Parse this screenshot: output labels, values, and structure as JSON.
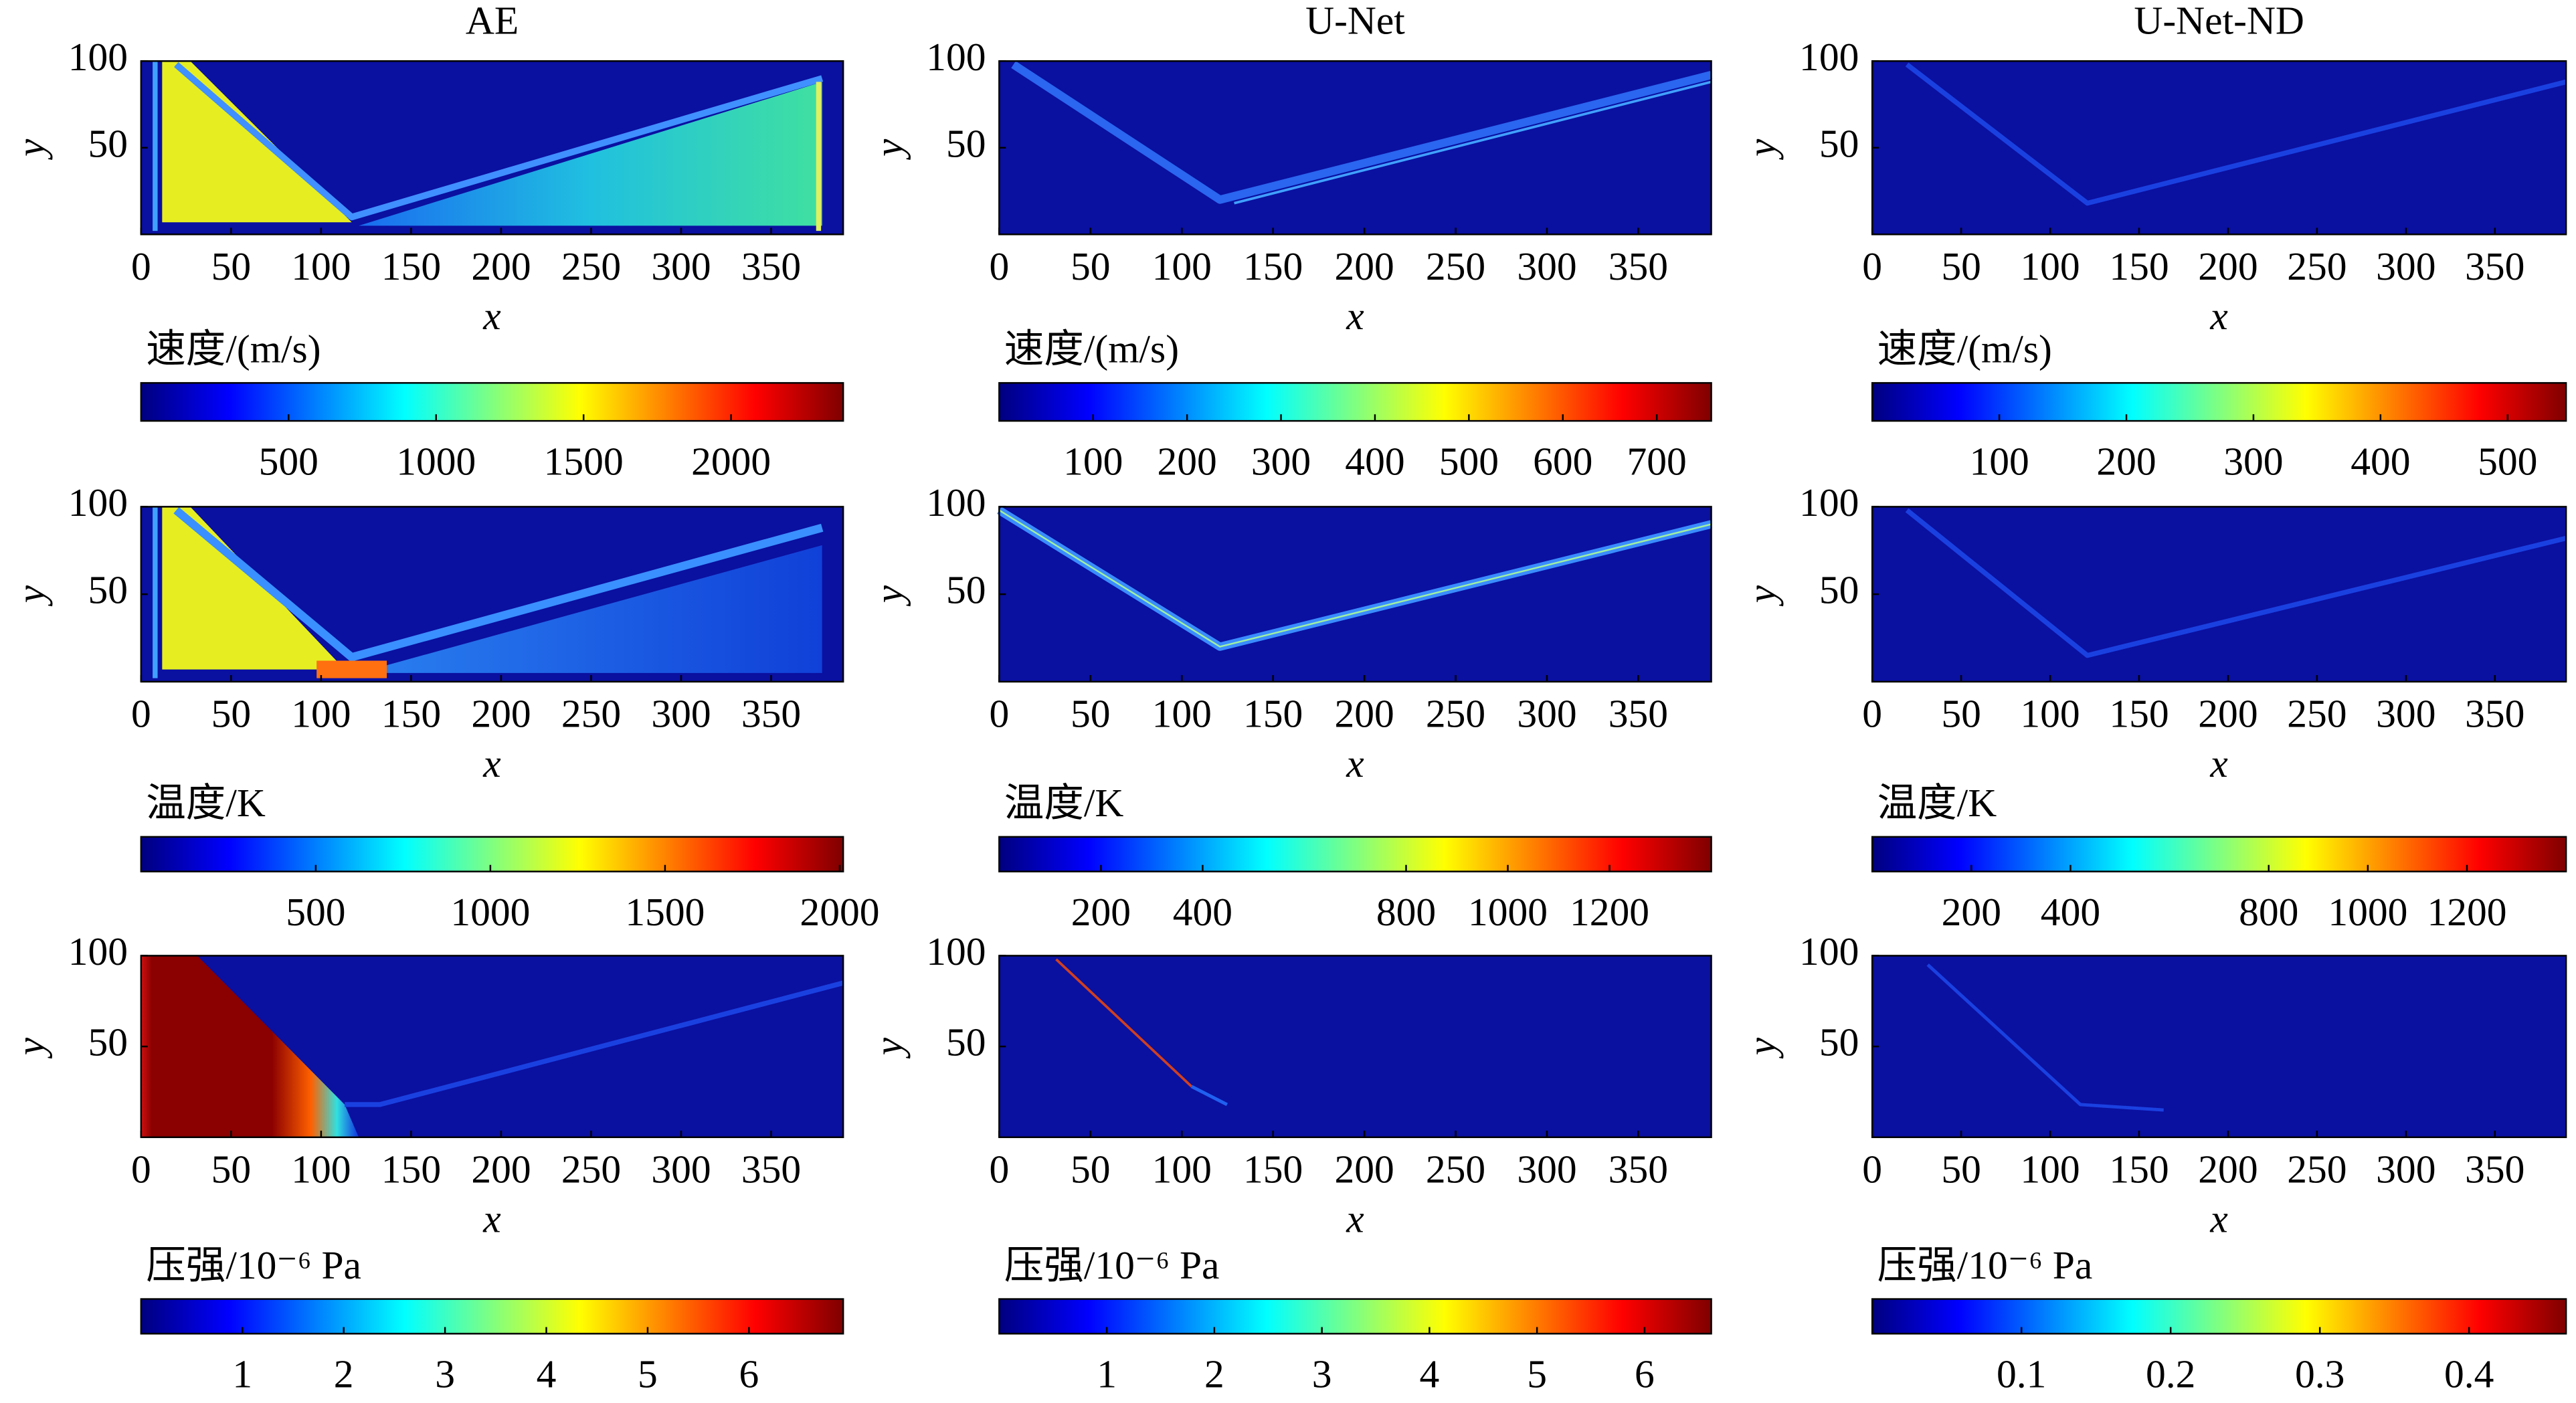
{
  "chart_data": [
    {
      "type": "heatmap",
      "title": "AE",
      "xlabel": "x",
      "ylabel": "y",
      "xlim": [
        0,
        390
      ],
      "ylim": [
        0,
        100
      ],
      "xticks": [
        0,
        50,
        100,
        150,
        200,
        250,
        300,
        350
      ],
      "yticks": [
        50,
        100
      ],
      "colorbar": {
        "label": "速度/(m/s)",
        "lim": [
          0,
          2380
        ],
        "ticks": [
          500,
          1000,
          1500,
          2000
        ]
      }
    },
    {
      "type": "heatmap",
      "title": "U-Net",
      "xlabel": "x",
      "ylabel": "y",
      "xlim": [
        0,
        390
      ],
      "ylim": [
        0,
        100
      ],
      "xticks": [
        0,
        50,
        100,
        150,
        200,
        250,
        300,
        350
      ],
      "yticks": [
        50,
        100
      ],
      "colorbar": {
        "label": "速度/(m/s)",
        "lim": [
          0,
          758
        ],
        "ticks": [
          100,
          200,
          300,
          400,
          500,
          600,
          700
        ]
      }
    },
    {
      "type": "heatmap",
      "title": "U-Net-ND",
      "xlabel": "x",
      "ylabel": "y",
      "xlim": [
        0,
        390
      ],
      "ylim": [
        0,
        100
      ],
      "xticks": [
        0,
        50,
        100,
        150,
        200,
        250,
        300,
        350
      ],
      "yticks": [
        50,
        100
      ],
      "colorbar": {
        "label": "速度/(m/s)",
        "lim": [
          0,
          546
        ],
        "ticks": [
          100,
          200,
          300,
          400,
          500
        ]
      }
    },
    {
      "type": "heatmap",
      "xlabel": "x",
      "ylabel": "y",
      "xlim": [
        0,
        390
      ],
      "ylim": [
        0,
        100
      ],
      "xticks": [
        0,
        50,
        100,
        150,
        200,
        250,
        300,
        350
      ],
      "yticks": [
        50,
        100
      ],
      "colorbar": {
        "label": "温度/K",
        "lim": [
          0,
          2010
        ],
        "ticks": [
          500,
          1000,
          1500,
          2000
        ]
      }
    },
    {
      "type": "heatmap",
      "xlabel": "x",
      "ylabel": "y",
      "xlim": [
        0,
        390
      ],
      "ylim": [
        0,
        100
      ],
      "xticks": [
        0,
        50,
        100,
        150,
        200,
        250,
        300,
        350
      ],
      "yticks": [
        50,
        100
      ],
      "colorbar": {
        "label": "温度/K",
        "lim": [
          0,
          1400
        ],
        "ticks": [
          200,
          400,
          800,
          1000,
          1200
        ]
      }
    },
    {
      "type": "heatmap",
      "xlabel": "x",
      "ylabel": "y",
      "xlim": [
        0,
        390
      ],
      "ylim": [
        0,
        100
      ],
      "xticks": [
        0,
        50,
        100,
        150,
        200,
        250,
        300,
        350
      ],
      "yticks": [
        50,
        100
      ],
      "colorbar": {
        "label": "温度/K",
        "lim": [
          0,
          1400
        ],
        "ticks": [
          200,
          400,
          800,
          1000,
          1200
        ]
      }
    },
    {
      "type": "heatmap",
      "xlabel": "x",
      "ylabel": "y",
      "xlim": [
        0,
        390
      ],
      "ylim": [
        0,
        100
      ],
      "xticks": [
        0,
        50,
        100,
        150,
        200,
        250,
        300,
        350
      ],
      "yticks": [
        50,
        100
      ],
      "colorbar": {
        "label": "压强/10⁻⁶ Pa",
        "lim": [
          0,
          6.93
        ],
        "ticks": [
          1,
          2,
          3,
          4,
          5,
          6
        ]
      }
    },
    {
      "type": "heatmap",
      "xlabel": "x",
      "ylabel": "y",
      "xlim": [
        0,
        390
      ],
      "ylim": [
        0,
        100
      ],
      "xticks": [
        0,
        50,
        100,
        150,
        200,
        250,
        300,
        350
      ],
      "yticks": [
        50,
        100
      ],
      "colorbar": {
        "label": "压强/10⁻⁶ Pa",
        "lim": [
          0,
          6.62
        ],
        "ticks": [
          1,
          2,
          3,
          4,
          5,
          6
        ]
      }
    },
    {
      "type": "heatmap",
      "xlabel": "x",
      "ylabel": "y",
      "xlim": [
        0,
        390
      ],
      "ylim": [
        0,
        100
      ],
      "xticks": [
        0,
        50,
        100,
        150,
        200,
        250,
        300,
        350
      ],
      "yticks": [
        50,
        100
      ],
      "colorbar": {
        "label": "压强/10⁻⁶ Pa",
        "lim": [
          0,
          0.465
        ],
        "ticks": [
          0.1,
          0.2,
          0.3,
          0.4
        ]
      }
    }
  ]
}
